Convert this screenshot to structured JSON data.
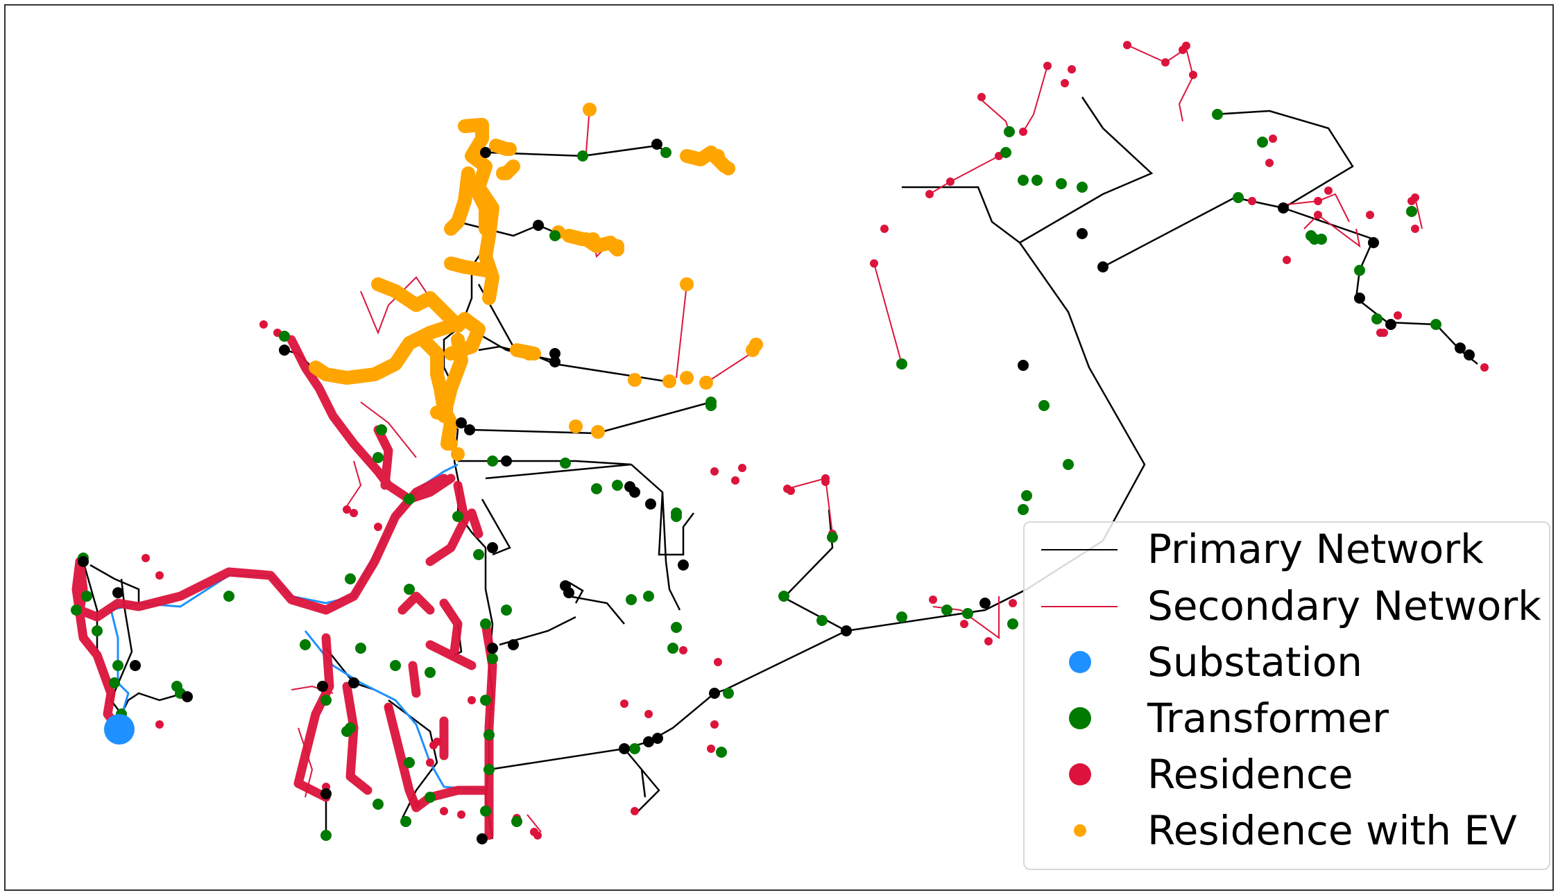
{
  "colors": {
    "primary": "#000000",
    "secondary": "#dc143c",
    "substation": "#1e90ff",
    "transformer": "#007a00",
    "residence": "#dc143c",
    "ev": "#ffa500"
  },
  "legend": {
    "items": [
      {
        "label": "Primary Network",
        "marker": "line",
        "color": "#000000"
      },
      {
        "label": "Secondary Network",
        "marker": "line",
        "color": "#dc143c"
      },
      {
        "label": "Substation",
        "marker": "dot",
        "color": "#1e90ff"
      },
      {
        "label": "Transformer",
        "marker": "dot",
        "color": "#007a00"
      },
      {
        "label": "Residence",
        "marker": "dot",
        "color": "#dc143c"
      },
      {
        "label": "Residence with EV",
        "marker": "dot-small",
        "color": "#ffa500"
      }
    ]
  }
}
